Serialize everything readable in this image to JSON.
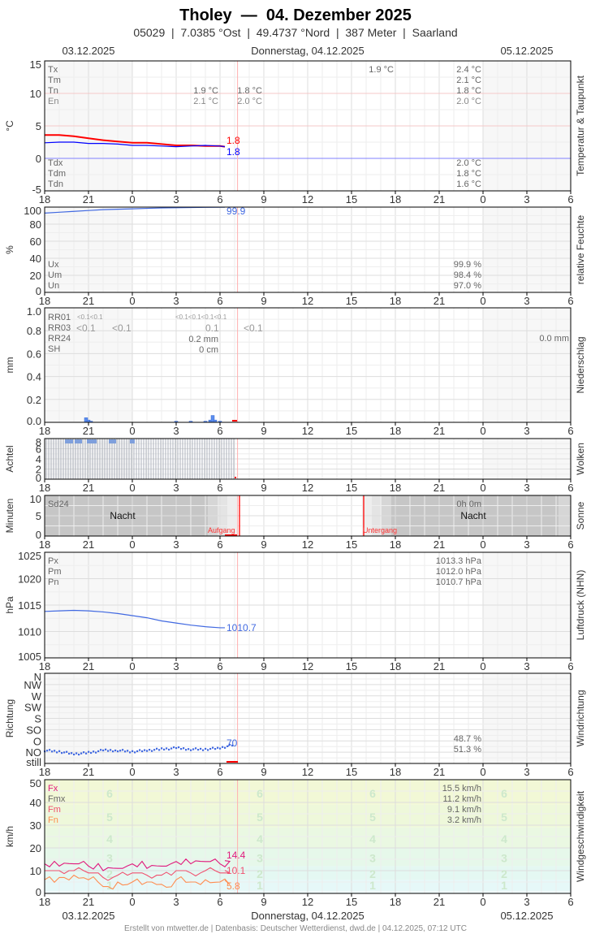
{
  "header": {
    "title": "Tholey  —  04. Dezember 2025",
    "subtitle": "05029  |  7.0385 °Ost  |  49.4737 °Nord  |  387 Meter  |  Saarland",
    "date_left": "03.12.2025",
    "date_center": "Donnerstag, 04.12.2025",
    "date_right": "05.12.2025"
  },
  "footer": {
    "date_left": "03.12.2025",
    "date_center": "Donnerstag, 04.12.2025",
    "date_right": "05.12.2025",
    "credits": "Erstellt von mtwetter.de | Datenbasis: Deutscher Wetterdienst, dwd.de | 04.12.2025, 07:12 UTC"
  },
  "colors": {
    "temp": "#ff0000",
    "dew": "#0000ff",
    "humidity": "#4169e1",
    "pressure": "#4169e1",
    "wind_dir": "#4169e1",
    "precip": "#5b8def",
    "fx": "#e0197d",
    "fmx": "#666666",
    "fm": "#f0506e",
    "fn": "#ff8c50",
    "now_line": "#ffb0b0",
    "sun_line": "#ff0000"
  },
  "x_ticks": [
    "18",
    "21",
    "0",
    "3",
    "6",
    "9",
    "12",
    "15",
    "18",
    "21",
    "0",
    "3",
    "6"
  ],
  "times": [
    "18:00",
    "19:00",
    "20:00",
    "21:00",
    "22:00",
    "23:00",
    "00:00",
    "01:00",
    "02:00",
    "03:00",
    "04:00",
    "05:00",
    "06:00",
    "06:20"
  ],
  "chart_data": [
    {
      "type": "line",
      "panel": "temperature",
      "ylabel": "°C",
      "side_label": "Temperatur & Taupunkt",
      "ylim": [
        -5,
        15
      ],
      "y_ticks": [
        "15",
        "10",
        "5",
        "0",
        "-5"
      ],
      "series": [
        {
          "name": "T",
          "values": [
            3.6,
            3.6,
            3.4,
            3.1,
            2.8,
            2.6,
            2.4,
            2.4,
            2.2,
            2.0,
            2.0,
            1.9,
            1.9,
            1.8
          ],
          "current": "1.8"
        },
        {
          "name": "Td",
          "values": [
            2.4,
            2.5,
            2.5,
            2.3,
            2.3,
            2.2,
            2.0,
            2.0,
            1.9,
            1.8,
            1.9,
            2.0,
            1.9,
            1.8
          ],
          "current": "1.8"
        }
      ],
      "stats": {
        "labels": [
          "Tx",
          "Tm",
          "Tn",
          "En"
        ],
        "day1_tn": "1.9 °C",
        "day1_en": "2.1 °C",
        "night_tn": "1.8 °C",
        "night_en": "2.0 °C",
        "mid_tx": "1.9 °C",
        "right": [
          "2.4 °C",
          "2.1 °C",
          "1.8 °C",
          "2.0 °C"
        ],
        "dew_labels": [
          "Tdx",
          "Tdm",
          "Tdn"
        ],
        "dew_right": [
          "2.0 °C",
          "1.8 °C",
          "1.6 °C"
        ]
      }
    },
    {
      "type": "line",
      "panel": "humidity",
      "ylabel": "%",
      "side_label": "relative Feuchte",
      "ylim": [
        0,
        100
      ],
      "y_ticks": [
        "100",
        "80",
        "60",
        "40",
        "20",
        "0"
      ],
      "series": [
        {
          "name": "U",
          "values": [
            93,
            94,
            95,
            96,
            97,
            97.5,
            98,
            98.5,
            99,
            99.3,
            99.5,
            99.7,
            99.8,
            99.9
          ],
          "current": "99.9"
        }
      ],
      "stats": {
        "labels": [
          "Ux",
          "Um",
          "Un"
        ],
        "right": [
          "99.9 %",
          "98.4 %",
          "97.0 %"
        ]
      }
    },
    {
      "type": "bar",
      "panel": "precipitation",
      "ylabel": "mm",
      "side_label": "Niederschlag",
      "ylim": [
        0,
        1
      ],
      "y_ticks": [
        "1.0",
        "0.8",
        "0.6",
        "0.4",
        "0.2",
        "0.0"
      ],
      "bars": [
        {
          "time": "20:50",
          "value": 0.04
        },
        {
          "time": "21:00",
          "value": 0.02
        },
        {
          "time": "21:10",
          "value": 0.01
        },
        {
          "time": "03:00",
          "value": 0.01
        },
        {
          "time": "04:00",
          "value": 0.01
        },
        {
          "time": "05:00",
          "value": 0.01
        },
        {
          "time": "05:20",
          "value": 0.02
        },
        {
          "time": "05:30",
          "value": 0.06
        },
        {
          "time": "05:40",
          "value": 0.02
        },
        {
          "time": "06:00",
          "value": 0.01
        }
      ],
      "stats": {
        "labels": [
          "RR01",
          "RR03",
          "RR24",
          "SH"
        ],
        "rr01_a": "<0.1<0.1",
        "rr01_b": "<0.1<0.1<0.1<0.1",
        "rr03": [
          "<0.1",
          "<0.1",
          "0.1",
          "<0.1"
        ],
        "rr24": "0.2 mm",
        "sh": "0 cm",
        "rr24_next": "0.0 mm"
      }
    },
    {
      "type": "bar",
      "panel": "clouds",
      "ylabel": "Achtel",
      "side_label": "Wolken",
      "ylim": [
        0,
        8
      ],
      "y_ticks": [
        "8",
        "6",
        "4",
        "2",
        "0"
      ],
      "value_until": "07:00",
      "value": 8
    },
    {
      "type": "area",
      "panel": "sunshine",
      "ylabel": "Minuten",
      "side_label": "Sonne",
      "ylim": [
        0,
        10
      ],
      "y_ticks": [
        "10",
        "5",
        "0"
      ],
      "stats": {
        "sd24": "Sd24",
        "night": "Nacht",
        "sd24_next": "0h 0m",
        "sunrise": "Aufgang",
        "sunset": "Untergang",
        "sunrise_time": "07:20",
        "sunset_time": "15:50"
      }
    },
    {
      "type": "line",
      "panel": "pressure",
      "ylabel": "hPa",
      "side_label": "Luftdruck (NHN)",
      "ylim": [
        1005,
        1025
      ],
      "y_ticks": [
        "1025",
        "1020",
        "1015",
        "1010",
        "1005"
      ],
      "series": [
        {
          "name": "P",
          "values": [
            1013.8,
            1013.9,
            1014.0,
            1013.9,
            1013.7,
            1013.4,
            1013.0,
            1012.6,
            1012.0,
            1011.6,
            1011.2,
            1010.9,
            1010.7,
            1010.7
          ],
          "current": "1010.7"
        }
      ],
      "stats": {
        "labels": [
          "Px",
          "Pm",
          "Pn"
        ],
        "right": [
          "1013.3 hPa",
          "1012.0 hPa",
          "1010.7 hPa"
        ]
      }
    },
    {
      "type": "scatter",
      "panel": "wind_direction",
      "ylabel": "Richtung",
      "side_label": "Windrichtung",
      "y_ticks": [
        "N",
        "NW",
        "W",
        "SW",
        "S",
        "SO",
        "O",
        "NO",
        "still"
      ],
      "series": [
        {
          "name": "Richtung",
          "values": [
            45,
            40,
            30,
            35,
            45,
            45,
            40,
            45,
            50,
            55,
            50,
            50,
            55,
            70
          ],
          "current": "70"
        }
      ],
      "stats": {
        "right": [
          "48.7 %",
          "51.3 %"
        ]
      }
    },
    {
      "type": "line",
      "panel": "wind_speed",
      "ylabel": "km/h",
      "side_label": "Windgeschwindigkeit",
      "ylim": [
        0,
        50
      ],
      "y_ticks": [
        "50",
        "40",
        "30",
        "20",
        "10",
        "0"
      ],
      "beaufort": [
        "1",
        "2",
        "3",
        "4",
        "5",
        "6"
      ],
      "series": [
        {
          "name": "Fx",
          "values": [
            13,
            12,
            13,
            12,
            10,
            11,
            13,
            11,
            12,
            14,
            13,
            14,
            13,
            14.4
          ],
          "current": "14.4"
        },
        {
          "name": "Fm",
          "values": [
            10,
            10,
            10,
            9,
            7,
            8,
            9,
            8,
            8,
            10,
            9,
            10,
            9,
            10.1
          ],
          "current": "10.1"
        },
        {
          "name": "Fn",
          "values": [
            6,
            7,
            8,
            6,
            3,
            5,
            5,
            5,
            4,
            6,
            5,
            6,
            5,
            5.8
          ],
          "current": "5.8"
        }
      ],
      "stats": {
        "labels": [
          "Fx",
          "Fmx",
          "Fm",
          "Fn"
        ],
        "right": [
          "15.5 km/h",
          "11.2 km/h",
          "9.1 km/h",
          "3.2 km/h"
        ]
      }
    }
  ]
}
